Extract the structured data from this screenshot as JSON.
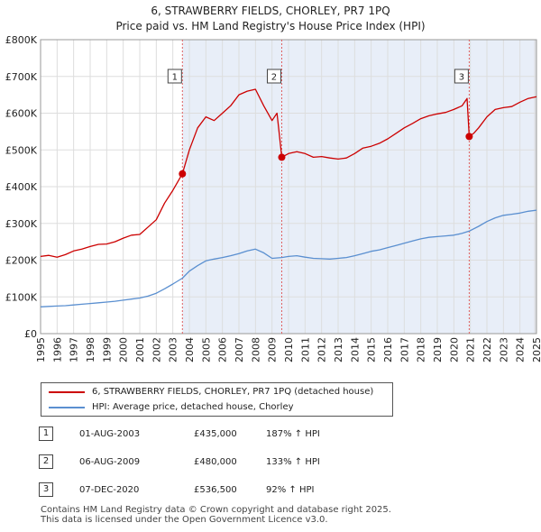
{
  "title_line1": "6, STRAWBERRY FIELDS, CHORLEY, PR7 1PQ",
  "title_line2": "Price paid vs. HM Land Registry's House Price Index (HPI)",
  "colors": {
    "price_line": "#cc0000",
    "hpi_line": "#5a8fd0",
    "band": "#e8eef8",
    "grid": "#dddddd",
    "vline": "#e06060"
  },
  "legend": [
    {
      "label": "6, STRAWBERRY FIELDS, CHORLEY, PR7 1PQ (detached house)",
      "color": "#cc0000"
    },
    {
      "label": "HPI: Average price, detached house, Chorley",
      "color": "#5a8fd0"
    }
  ],
  "sales": [
    {
      "num": "1",
      "date": "01-AUG-2003",
      "price": "£435,000",
      "hpi": "187% ↑ HPI"
    },
    {
      "num": "2",
      "date": "06-AUG-2009",
      "price": "£480,000",
      "hpi": "133% ↑ HPI"
    },
    {
      "num": "3",
      "date": "07-DEC-2020",
      "price": "£536,500",
      "hpi": "92% ↑ HPI"
    }
  ],
  "footer_line1": "Contains HM Land Registry data © Crown copyright and database right 2025.",
  "footer_line2": "This data is licensed under the Open Government Licence v3.0.",
  "chart_data": {
    "type": "line",
    "title": "6, STRAWBERRY FIELDS, CHORLEY, PR7 1PQ",
    "subtitle": "Price paid vs. HM Land Registry's House Price Index (HPI)",
    "xlim": [
      1995,
      2025
    ],
    "ylim": [
      0,
      800000
    ],
    "yticks": [
      {
        "value": 0,
        "label": "£0"
      },
      {
        "value": 100000,
        "label": "£100K"
      },
      {
        "value": 200000,
        "label": "£200K"
      },
      {
        "value": 300000,
        "label": "£300K"
      },
      {
        "value": 400000,
        "label": "£400K"
      },
      {
        "value": 500000,
        "label": "£500K"
      },
      {
        "value": 600000,
        "label": "£600K"
      },
      {
        "value": 700000,
        "label": "£700K"
      },
      {
        "value": 800000,
        "label": "£800K"
      }
    ],
    "xticks": [
      "1995",
      "1996",
      "1997",
      "1998",
      "1999",
      "2000",
      "2001",
      "2002",
      "2003",
      "2004",
      "2005",
      "2006",
      "2007",
      "2008",
      "2009",
      "2010",
      "2011",
      "2012",
      "2013",
      "2014",
      "2015",
      "2016",
      "2017",
      "2018",
      "2019",
      "2020",
      "2021",
      "2022",
      "2023",
      "2024",
      "2025"
    ],
    "series": [
      {
        "name": "6, STRAWBERRY FIELDS, CHORLEY, PR7 1PQ (detached house)",
        "color": "#cc0000",
        "x": [
          1995.0,
          1995.5,
          1996.0,
          1996.5,
          1997.0,
          1997.5,
          1998.0,
          1998.5,
          1999.0,
          1999.5,
          2000.0,
          2000.5,
          2001.0,
          2001.5,
          2002.0,
          2002.5,
          2003.0,
          2003.58,
          2004.0,
          2004.5,
          2005.0,
          2005.5,
          2006.0,
          2006.5,
          2007.0,
          2007.5,
          2008.0,
          2008.5,
          2009.0,
          2009.3,
          2009.4,
          2009.59,
          2010.0,
          2010.5,
          2011.0,
          2011.5,
          2012.0,
          2012.5,
          2013.0,
          2013.5,
          2014.0,
          2014.5,
          2015.0,
          2015.5,
          2016.0,
          2016.5,
          2017.0,
          2017.5,
          2018.0,
          2018.5,
          2019.0,
          2019.5,
          2020.0,
          2020.5,
          2020.8,
          2020.93,
          2021.2,
          2021.5,
          2022.0,
          2022.5,
          2023.0,
          2023.5,
          2024.0,
          2024.5,
          2025.0
        ],
        "y": [
          210000,
          213000,
          208000,
          215000,
          225000,
          230000,
          237000,
          243000,
          244000,
          250000,
          260000,
          268000,
          270000,
          290000,
          310000,
          355000,
          390000,
          435000,
          500000,
          560000,
          590000,
          580000,
          600000,
          620000,
          650000,
          660000,
          665000,
          620000,
          580000,
          600000,
          560000,
          480000,
          490000,
          495000,
          490000,
          480000,
          482000,
          478000,
          475000,
          478000,
          490000,
          505000,
          510000,
          518000,
          530000,
          545000,
          560000,
          572000,
          585000,
          593000,
          598000,
          602000,
          610000,
          620000,
          640000,
          536500,
          545000,
          560000,
          590000,
          610000,
          615000,
          618000,
          630000,
          640000,
          645000
        ]
      },
      {
        "name": "HPI: Average price, detached house, Chorley",
        "color": "#5a8fd0",
        "x": [
          1995.0,
          1995.5,
          1996.0,
          1996.5,
          1997.0,
          1997.5,
          1998.0,
          1998.5,
          1999.0,
          1999.5,
          2000.0,
          2000.5,
          2001.0,
          2001.5,
          2002.0,
          2002.5,
          2003.0,
          2003.58,
          2004.0,
          2004.5,
          2005.0,
          2005.5,
          2006.0,
          2006.5,
          2007.0,
          2007.5,
          2008.0,
          2008.5,
          2009.0,
          2009.59,
          2010.0,
          2010.5,
          2011.0,
          2011.5,
          2012.0,
          2012.5,
          2013.0,
          2013.5,
          2014.0,
          2014.5,
          2015.0,
          2015.5,
          2016.0,
          2016.5,
          2017.0,
          2017.5,
          2018.0,
          2018.5,
          2019.0,
          2019.5,
          2020.0,
          2020.5,
          2020.93,
          2021.5,
          2022.0,
          2022.5,
          2023.0,
          2023.5,
          2024.0,
          2024.5,
          2025.0
        ],
        "y": [
          73000,
          74000,
          75000,
          76000,
          78000,
          80000,
          82000,
          84000,
          86000,
          88000,
          91000,
          94000,
          97000,
          102000,
          110000,
          122000,
          135000,
          151000,
          170000,
          185000,
          198000,
          203000,
          207000,
          212000,
          218000,
          225000,
          230000,
          220000,
          205000,
          207000,
          210000,
          212000,
          208000,
          205000,
          204000,
          203000,
          205000,
          207000,
          212000,
          218000,
          224000,
          228000,
          234000,
          240000,
          246000,
          252000,
          258000,
          262000,
          264000,
          266000,
          268000,
          273000,
          279000,
          292000,
          305000,
          315000,
          322000,
          325000,
          328000,
          333000,
          336000
        ]
      }
    ],
    "sale_markers": [
      {
        "label": "1",
        "x": 2003.58,
        "y": 435000
      },
      {
        "label": "2",
        "x": 2009.59,
        "y": 480000
      },
      {
        "label": "3",
        "x": 2020.93,
        "y": 536500
      }
    ]
  }
}
